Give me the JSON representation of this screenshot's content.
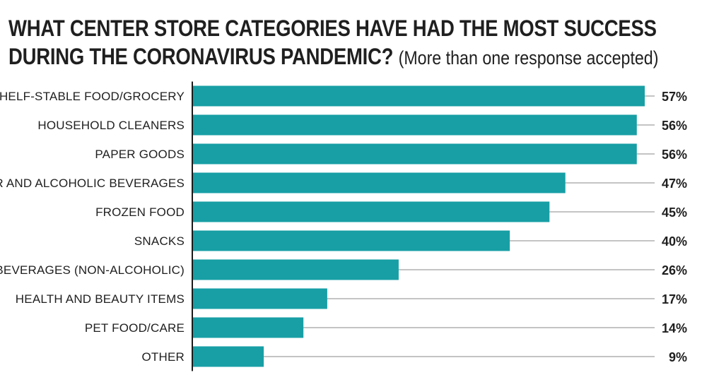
{
  "title_line1": "WHAT CENTER STORE CATEGORIES HAVE HAD THE MOST SUCCESS",
  "title_line2": "DURING THE CORONAVIRUS PANDEMIC?",
  "subtitle": "(More than one response accepted)",
  "colors": {
    "bar": "#179fa5",
    "leader_line": "#8a8a8a",
    "axis": "#1a1a1a"
  },
  "chart_data": {
    "type": "bar",
    "orientation": "horizontal",
    "title": "WHAT CENTER STORE CATEGORIES HAVE HAD THE MOST SUCCESS DURING THE CORONAVIRUS PANDEMIC?",
    "subtitle": "(More than one response accepted)",
    "categories": [
      "SHELF-STABLE FOOD/GROCERY",
      "HOUSEHOLD CLEANERS",
      "PAPER GOODS",
      "BEER AND ALCOHOLIC BEVERAGES",
      "FROZEN FOOD",
      "SNACKS",
      "BEVERAGES (NON-ALCOHOLIC)",
      "HEALTH AND BEAUTY ITEMS",
      "PET FOOD/CARE",
      "OTHER"
    ],
    "values": [
      57,
      56,
      56,
      47,
      45,
      40,
      26,
      17,
      14,
      9
    ],
    "value_labels": [
      "57%",
      "56%",
      "56%",
      "47%",
      "45%",
      "40%",
      "26%",
      "17%",
      "14%",
      "9%"
    ],
    "xlim": [
      0,
      57
    ],
    "grid": false,
    "legend": "none"
  }
}
